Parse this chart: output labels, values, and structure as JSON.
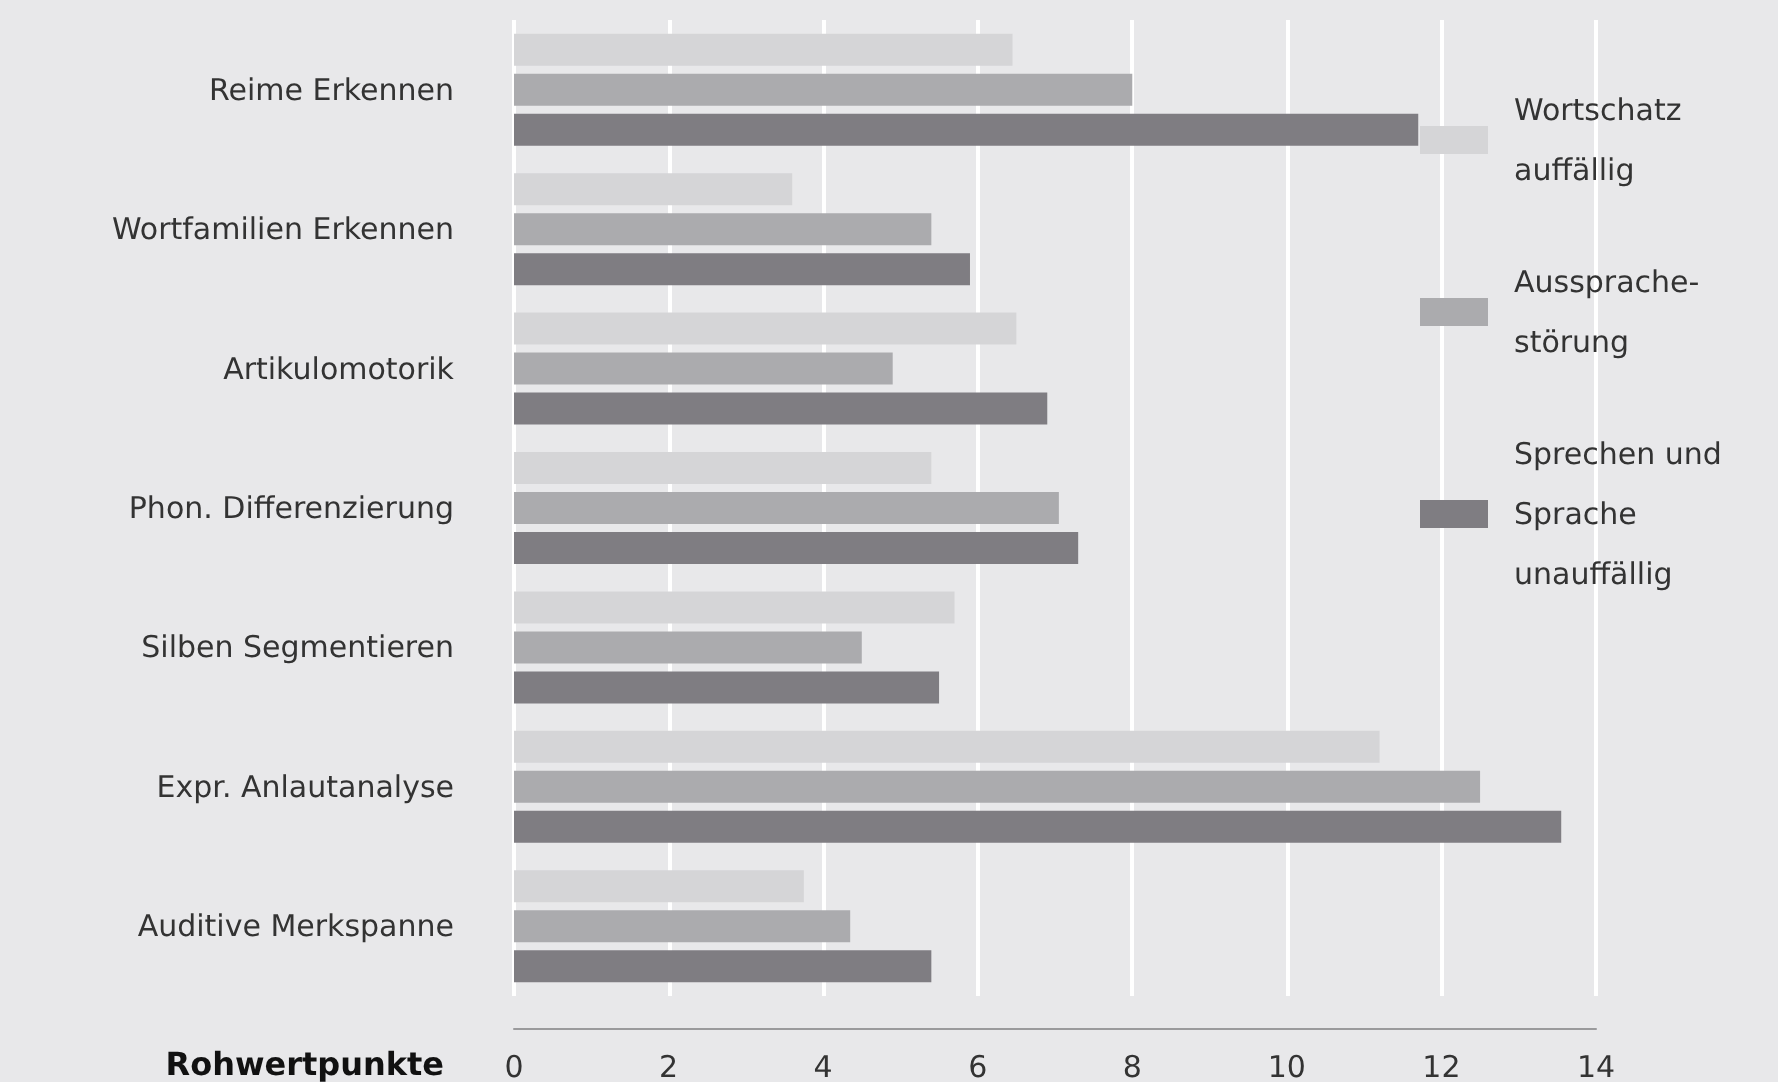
{
  "chart_data": {
    "type": "bar",
    "orientation": "horizontal",
    "xlabel": "Rohwertpunkte",
    "categories": [
      "Reime Erkennen",
      "Wortfamilien Erkennen",
      "Artikulomotorik",
      "Phon. Differenzierung",
      "Silben Segmentieren",
      "Expr. Anlautanalyse",
      "Auditive Merkspanne"
    ],
    "series": [
      {
        "name": "Wortschatz\nauffällig",
        "color": "#d5d5d7",
        "values": [
          6.45,
          3.6,
          6.5,
          5.4,
          5.7,
          11.2,
          3.75
        ]
      },
      {
        "name": "Aussprache-\nstörung",
        "color": "#ababae",
        "values": [
          8.0,
          5.4,
          4.9,
          7.05,
          4.5,
          12.5,
          4.35
        ]
      },
      {
        "name": "Sprechen und\nSprache\nunauffällig",
        "color": "#7f7d82",
        "values": [
          11.7,
          5.9,
          6.9,
          7.3,
          5.5,
          13.55,
          5.4
        ]
      }
    ],
    "xlim": [
      0,
      14
    ],
    "xticks": [
      0,
      2,
      4,
      6,
      8,
      10,
      12,
      14
    ],
    "grid": "x",
    "legend": "top right"
  }
}
